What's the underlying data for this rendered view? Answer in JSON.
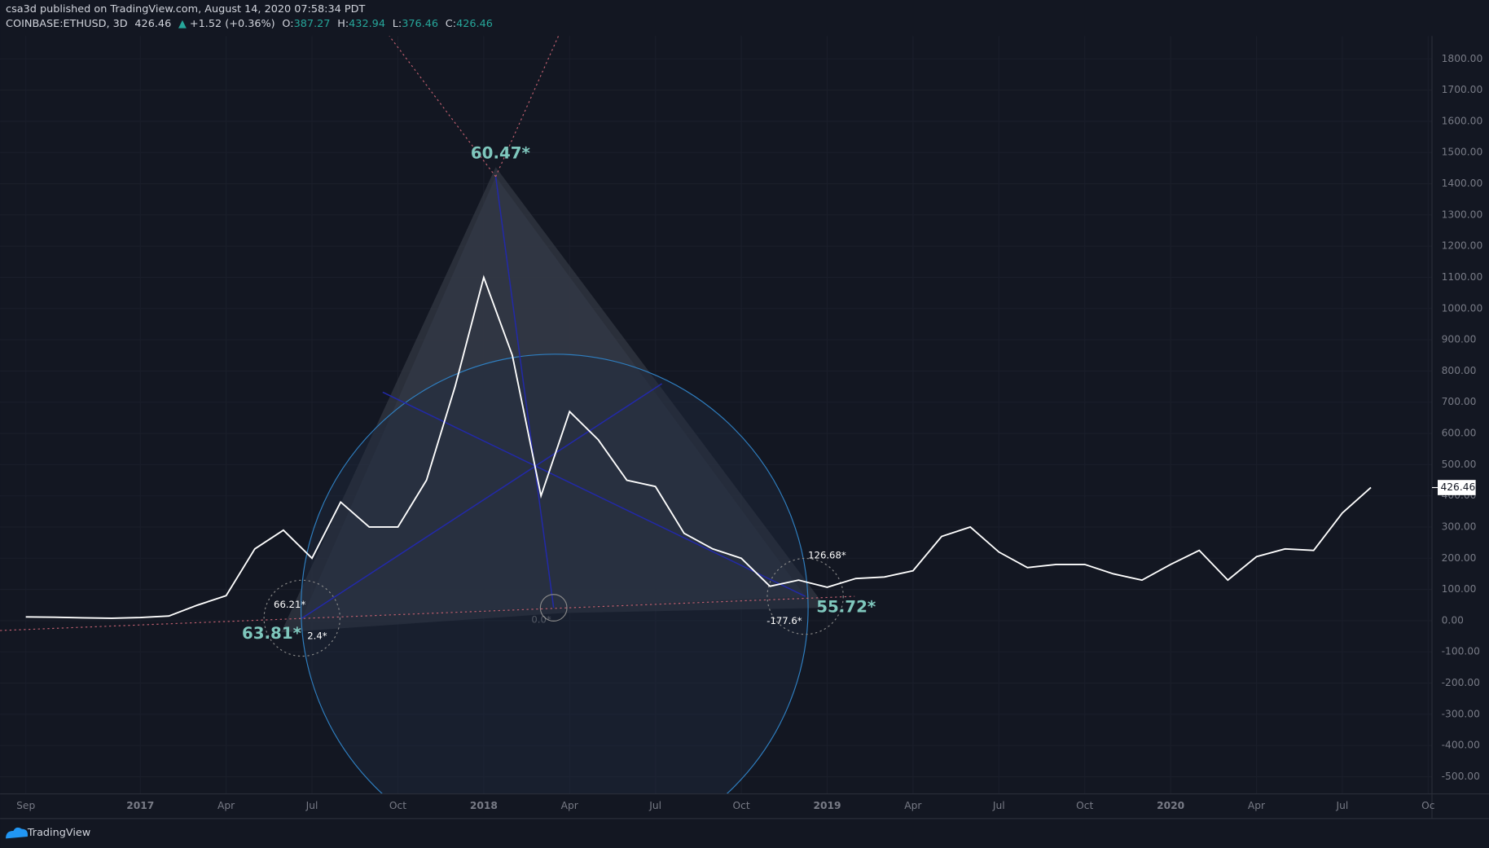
{
  "header": {
    "publisher": "csa3d published on TradingView.com, August 14, 2020 07:58:34 PDT",
    "symbol": "COINBASE:ETHUSD, 3D",
    "last": "426.46",
    "change": "+1.52 (+0.36%)",
    "o_label": "O:",
    "o_value": "387.27",
    "h_label": "H:",
    "h_value": "432.94",
    "l_label": "L:",
    "l_value": "376.46",
    "c_label": "C:",
    "c_value": "426.46"
  },
  "chart_data": {
    "type": "line",
    "color": "#ffffff",
    "x": [
      "2016-09",
      "2016-10",
      "2016-11",
      "2016-12",
      "2017-01",
      "2017-02",
      "2017-03",
      "2017-04",
      "2017-05",
      "2017-06",
      "2017-07",
      "2017-08",
      "2017-09",
      "2017-10",
      "2017-11",
      "2017-12",
      "2018-01",
      "2018-02",
      "2018-03",
      "2018-04",
      "2018-05",
      "2018-06",
      "2018-07",
      "2018-08",
      "2018-09",
      "2018-10",
      "2018-11",
      "2018-12",
      "2019-01",
      "2019-02",
      "2019-03",
      "2019-04",
      "2019-05",
      "2019-06",
      "2019-07",
      "2019-08",
      "2019-09",
      "2019-10",
      "2019-11",
      "2019-12",
      "2020-01",
      "2020-02",
      "2020-03",
      "2020-04",
      "2020-05",
      "2020-06",
      "2020-07",
      "2020-08"
    ],
    "values": [
      12,
      11,
      9,
      8,
      10,
      15,
      50,
      80,
      230,
      290,
      200,
      380,
      300,
      300,
      450,
      750,
      1100,
      850,
      400,
      670,
      580,
      450,
      430,
      280,
      230,
      200,
      110,
      130,
      107,
      135,
      140,
      160,
      270,
      300,
      220,
      170,
      180,
      180,
      150,
      130,
      180,
      225,
      130,
      205,
      230,
      225,
      345,
      426.46
    ],
    "xlim": [
      "2016-08",
      "2020-10"
    ],
    "xticks": [
      {
        "value": "2016-09",
        "label": "Sep"
      },
      {
        "value": "2017-01",
        "label": "2017"
      },
      {
        "value": "2017-04",
        "label": "Apr"
      },
      {
        "value": "2017-07",
        "label": "Jul"
      },
      {
        "value": "2017-10",
        "label": "Oct"
      },
      {
        "value": "2018-01",
        "label": "2018"
      },
      {
        "value": "2018-04",
        "label": "Apr"
      },
      {
        "value": "2018-07",
        "label": "Jul"
      },
      {
        "value": "2018-10",
        "label": "Oct"
      },
      {
        "value": "2019-01",
        "label": "2019"
      },
      {
        "value": "2019-04",
        "label": "Apr"
      },
      {
        "value": "2019-07",
        "label": "Jul"
      },
      {
        "value": "2019-10",
        "label": "Oct"
      },
      {
        "value": "2020-01",
        "label": "2020"
      },
      {
        "value": "2020-04",
        "label": "Apr"
      },
      {
        "value": "2020-07",
        "label": "Jul"
      },
      {
        "value": "2020-10",
        "label": "Oc"
      }
    ],
    "ylim": [
      -555,
      1873
    ],
    "yticks": [
      {
        "value": -500,
        "label": "-500.00"
      },
      {
        "value": -400,
        "label": "-400.00"
      },
      {
        "value": -300,
        "label": "-300.00"
      },
      {
        "value": -200,
        "label": "-200.00"
      },
      {
        "value": -100,
        "label": "-100.00"
      },
      {
        "value": 0,
        "label": "0.00"
      },
      {
        "value": 100,
        "label": "100.00"
      },
      {
        "value": 200,
        "label": "200.00"
      },
      {
        "value": 300,
        "label": "300.00"
      },
      {
        "value": 400,
        "label": "400.00"
      },
      {
        "value": 500,
        "label": "500.00"
      },
      {
        "value": 600,
        "label": "600.00"
      },
      {
        "value": 700,
        "label": "700.00"
      },
      {
        "value": 800,
        "label": "800.00"
      },
      {
        "value": 900,
        "label": "900.00"
      },
      {
        "value": 1000,
        "label": "1000.00"
      },
      {
        "value": 1100,
        "label": "1100.00"
      },
      {
        "value": 1200,
        "label": "1200.00"
      },
      {
        "value": 1300,
        "label": "1300.00"
      },
      {
        "value": 1400,
        "label": "1400.00"
      },
      {
        "value": 1500,
        "label": "1500.00"
      },
      {
        "value": 1600,
        "label": "1600.00"
      },
      {
        "value": 1700,
        "label": "1700.00"
      },
      {
        "value": 1800,
        "label": "1800.00"
      }
    ],
    "last_price": {
      "value": 426.46,
      "label": "426.46"
    },
    "annotations": [
      "60.47*",
      "63.81*",
      "55.72*",
      "66.21*",
      "2.4*",
      "126.68*",
      "-177.6*",
      "0.0*"
    ]
  },
  "footer": {
    "brand": "TradingView"
  }
}
